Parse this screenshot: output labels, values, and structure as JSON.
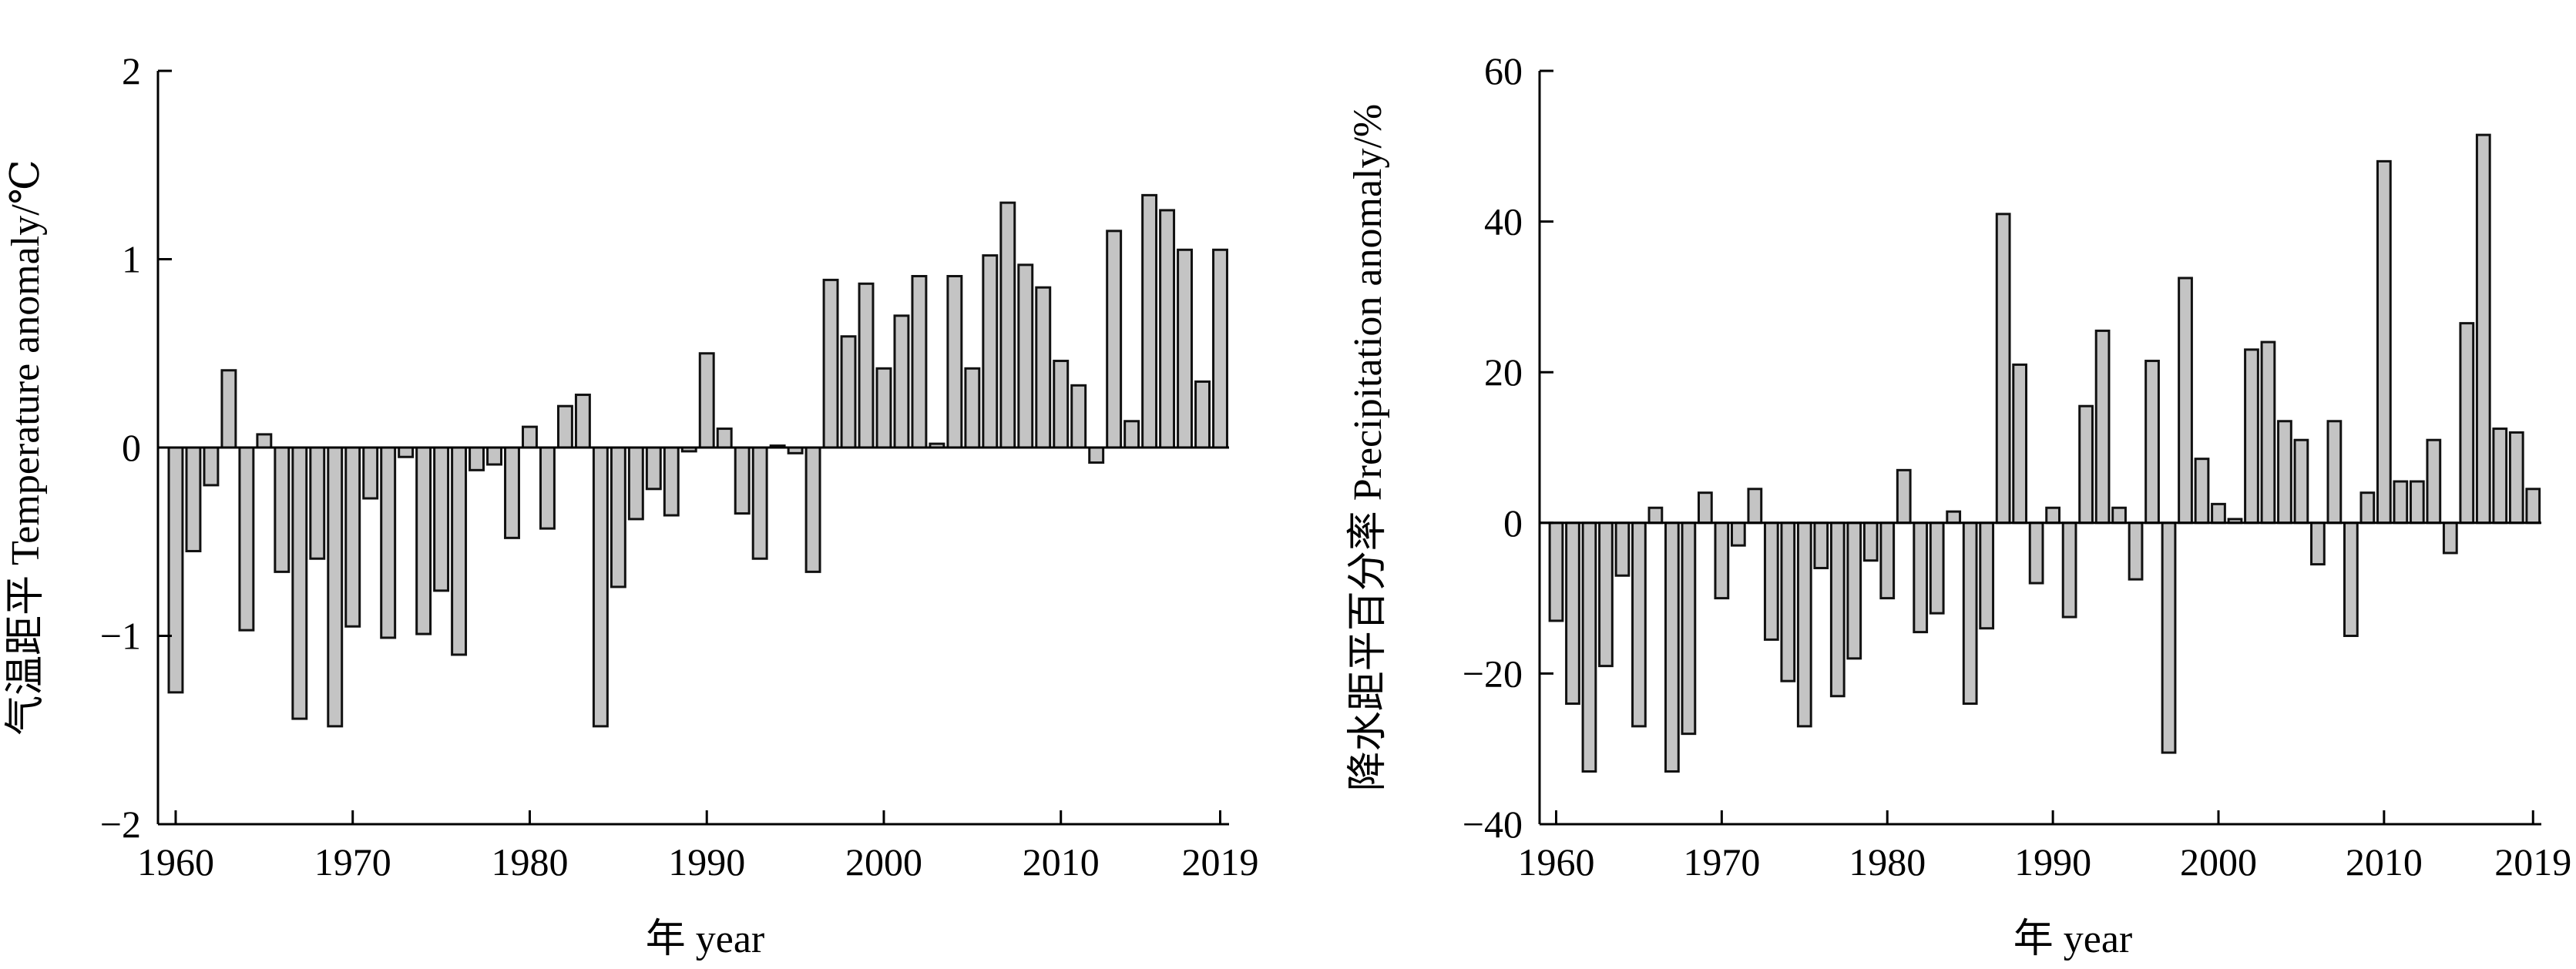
{
  "colors": {
    "bar_fill": "#c4c4c4",
    "bar_stroke": "#111111",
    "axis": "#000000"
  },
  "chart_data": [
    {
      "type": "bar",
      "title": "",
      "xlabel": "年 year",
      "ylabel": "气温距平 Temperature anomaly/℃",
      "xlim": [
        1959,
        2019.5
      ],
      "ylim": [
        -2,
        2
      ],
      "yticks": [
        -2,
        -1,
        0,
        1,
        2
      ],
      "xticks": [
        1960,
        1970,
        1980,
        1990,
        2000,
        2010,
        2019
      ],
      "series": [
        {
          "name": "Temperature anomaly",
          "x": [
            1960,
            1961,
            1962,
            1963,
            1964,
            1965,
            1966,
            1967,
            1968,
            1969,
            1970,
            1971,
            1972,
            1973,
            1974,
            1975,
            1976,
            1977,
            1978,
            1979,
            1980,
            1981,
            1982,
            1983,
            1984,
            1985,
            1986,
            1987,
            1988,
            1989,
            1990,
            1991,
            1992,
            1993,
            1994,
            1995,
            1996,
            1997,
            1998,
            1999,
            2000,
            2001,
            2002,
            2003,
            2004,
            2005,
            2006,
            2007,
            2008,
            2009,
            2010,
            2011,
            2012,
            2013,
            2014,
            2015,
            2016,
            2017,
            2018,
            2019
          ],
          "values": [
            -1.3,
            -0.55,
            -0.2,
            0.41,
            -0.97,
            0.07,
            -0.66,
            -1.44,
            -0.59,
            -1.48,
            -0.95,
            -0.27,
            -1.01,
            -0.05,
            -0.99,
            -0.76,
            -1.1,
            -0.12,
            -0.09,
            -0.48,
            0.11,
            -0.43,
            0.22,
            0.28,
            -1.48,
            -0.74,
            -0.38,
            -0.22,
            -0.36,
            -0.02,
            0.5,
            0.1,
            -0.35,
            -0.59,
            0.01,
            -0.03,
            -0.66,
            0.89,
            0.59,
            0.87,
            0.42,
            0.7,
            0.91,
            0.02,
            0.91,
            0.42,
            1.02,
            1.3,
            0.97,
            0.85,
            0.46,
            0.33,
            -0.08,
            1.15,
            0.14,
            1.34,
            1.26,
            1.05,
            0.35,
            1.05
          ]
        }
      ]
    },
    {
      "type": "bar",
      "title": "",
      "xlabel": "年 year",
      "ylabel": "降水距平百分率 Precipitation anomaly/%",
      "xlim": [
        1959,
        2019.5
      ],
      "ylim": [
        -40,
        60
      ],
      "yticks": [
        -40,
        -20,
        0,
        20,
        40,
        60
      ],
      "xticks": [
        1960,
        1970,
        1980,
        1990,
        2000,
        2010,
        2019
      ],
      "series": [
        {
          "name": "Precipitation anomaly",
          "x": [
            1960,
            1961,
            1962,
            1963,
            1964,
            1965,
            1966,
            1967,
            1968,
            1969,
            1970,
            1971,
            1972,
            1973,
            1974,
            1975,
            1976,
            1977,
            1978,
            1979,
            1980,
            1981,
            1982,
            1983,
            1984,
            1985,
            1986,
            1987,
            1988,
            1989,
            1990,
            1991,
            1992,
            1993,
            1994,
            1995,
            1996,
            1997,
            1998,
            1999,
            2000,
            2001,
            2002,
            2003,
            2004,
            2005,
            2006,
            2007,
            2008,
            2009,
            2010,
            2011,
            2012,
            2013,
            2014,
            2015,
            2016,
            2017,
            2018,
            2019
          ],
          "values": [
            -13,
            -24,
            -33,
            -19,
            -7,
            -27,
            2,
            -33,
            -28,
            4,
            -10,
            -3,
            4.5,
            -15.5,
            -21,
            -27,
            -6,
            -23,
            -18,
            -5,
            -10,
            7,
            -14.5,
            -12,
            1.5,
            -24,
            -14,
            41,
            21,
            -8,
            2,
            -12.5,
            15.5,
            25.5,
            2,
            -7.5,
            21.5,
            -30.5,
            32.5,
            8.5,
            2.5,
            0.5,
            23,
            24,
            13.5,
            11,
            -5.5,
            13.5,
            -15,
            4,
            48,
            5.5,
            5.5,
            11,
            -4,
            26.5,
            51.5,
            12.5,
            12,
            4.5
          ]
        }
      ]
    }
  ]
}
